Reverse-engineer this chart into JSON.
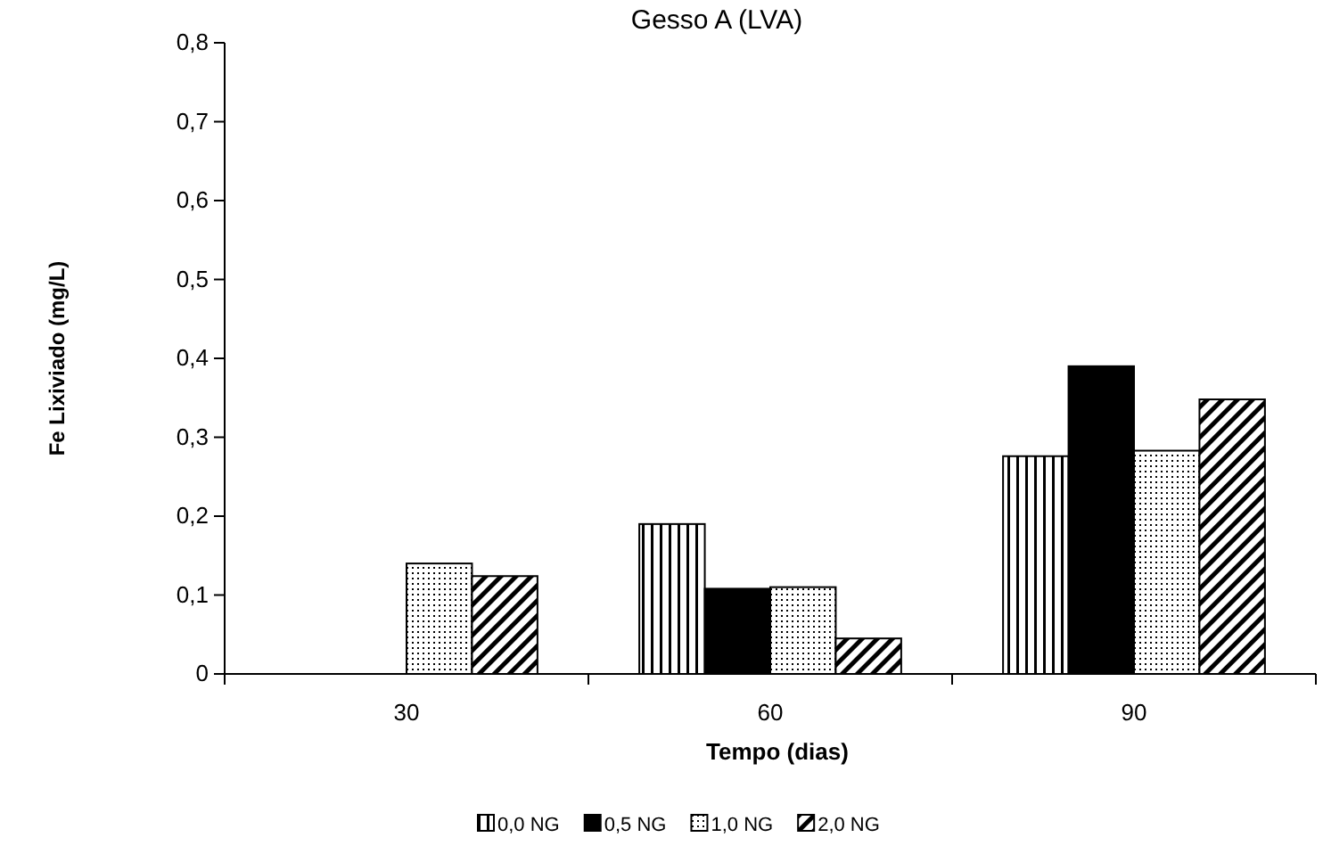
{
  "chart_data": {
    "type": "bar",
    "title": "Gesso A (LVA)",
    "xlabel": "Tempo (dias)",
    "ylabel": "Fe Lixiviado (mg/L)",
    "categories": [
      "30",
      "60",
      "90"
    ],
    "series": [
      {
        "name": "0,0 NG",
        "color": "#000000",
        "values": [
          0,
          0.19,
          0.276
        ]
      },
      {
        "name": "0,5 NG",
        "color": "#000000",
        "values": [
          0,
          0.108,
          0.39
        ]
      },
      {
        "name": "1,0 NG",
        "color": "#000000",
        "values": [
          0.14,
          0.11,
          0.283
        ]
      },
      {
        "name": "2,0 NG",
        "color": "#000000",
        "values": [
          0.124,
          0.045,
          0.348
        ]
      }
    ],
    "ylim": [
      0,
      0.8
    ],
    "yticks": [
      {
        "value": 0,
        "label": "0"
      },
      {
        "value": 0.1,
        "label": "0,1"
      },
      {
        "value": 0.2,
        "label": "0,2"
      },
      {
        "value": 0.3,
        "label": "0,3"
      },
      {
        "value": 0.4,
        "label": "0,4"
      },
      {
        "value": 0.5,
        "label": "0,5"
      },
      {
        "value": 0.6,
        "label": "0,6"
      },
      {
        "value": 0.7,
        "label": "0,7"
      },
      {
        "value": 0.8,
        "label": "0,8"
      }
    ],
    "grid": false,
    "legend": "bottom"
  }
}
